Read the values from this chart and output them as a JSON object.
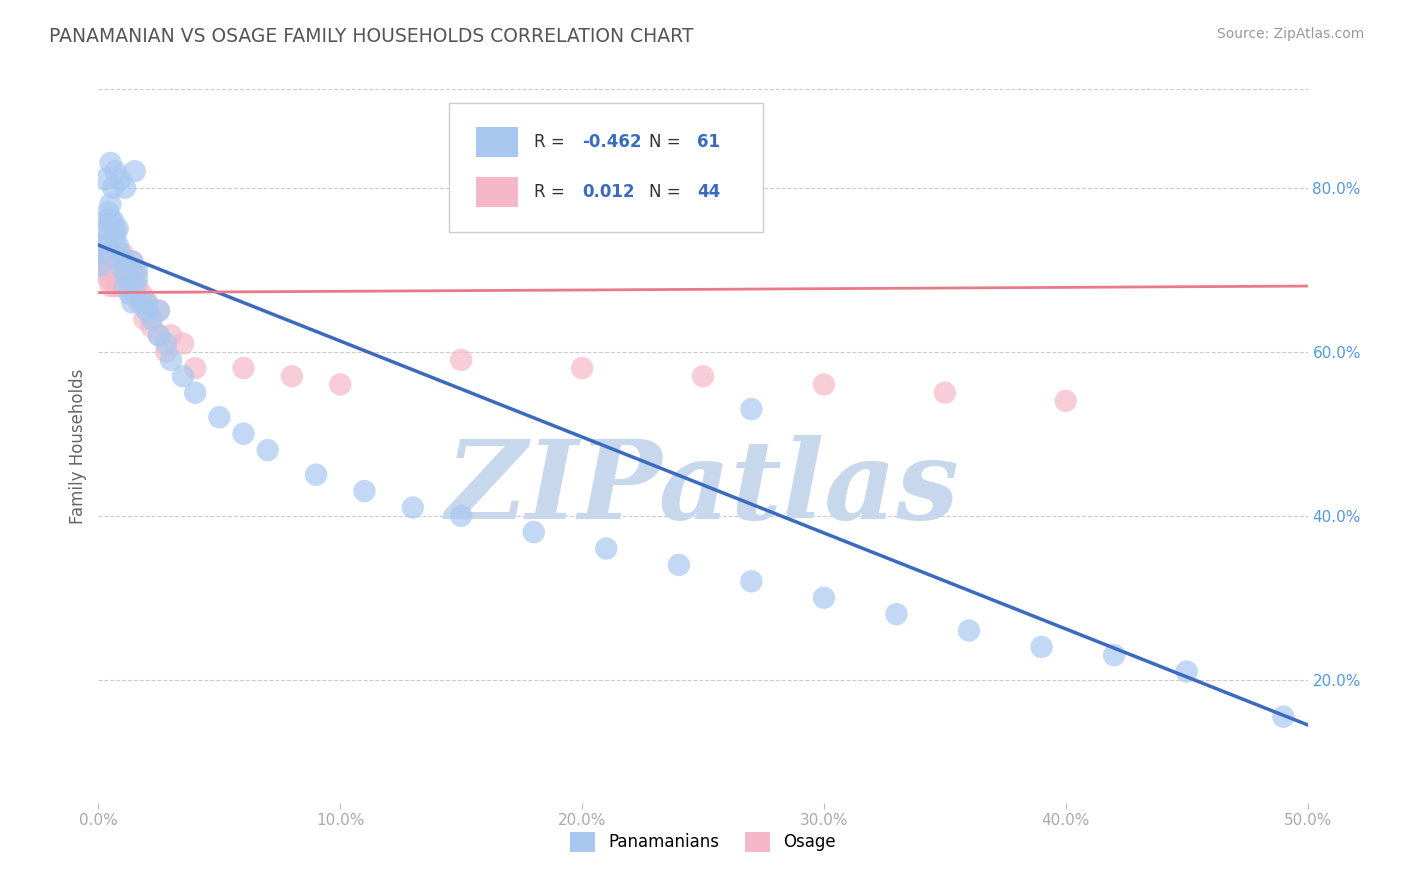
{
  "title": "PANAMANIAN VS OSAGE FAMILY HOUSEHOLDS CORRELATION CHART",
  "source": "Source: ZipAtlas.com",
  "ylabel": "Family Households",
  "xlim": [
    0.0,
    0.5
  ],
  "ylim": [
    0.05,
    0.92
  ],
  "xtick_labels": [
    "0.0%",
    "10.0%",
    "20.0%",
    "30.0%",
    "40.0%",
    "50.0%"
  ],
  "xtick_values": [
    0.0,
    0.1,
    0.2,
    0.3,
    0.4,
    0.5
  ],
  "ytick_labels": [
    "20.0%",
    "40.0%",
    "60.0%",
    "80.0%"
  ],
  "ytick_values": [
    0.2,
    0.4,
    0.6,
    0.8
  ],
  "blue_R": "-0.462",
  "blue_N": "61",
  "pink_R": "0.012",
  "pink_N": "44",
  "watermark": "ZIPatlas",
  "blue_scatter_x": [
    0.001,
    0.002,
    0.002,
    0.003,
    0.003,
    0.004,
    0.004,
    0.005,
    0.005,
    0.006,
    0.006,
    0.007,
    0.007,
    0.008,
    0.008,
    0.009,
    0.01,
    0.01,
    0.011,
    0.012,
    0.013,
    0.014,
    0.015,
    0.016,
    0.018,
    0.02,
    0.022,
    0.025,
    0.028,
    0.03,
    0.035,
    0.04,
    0.05,
    0.06,
    0.07,
    0.09,
    0.11,
    0.13,
    0.15,
    0.18,
    0.21,
    0.24,
    0.27,
    0.3,
    0.33,
    0.36,
    0.39,
    0.42,
    0.45,
    0.49,
    0.014,
    0.016,
    0.02,
    0.025,
    0.003,
    0.005,
    0.007,
    0.009,
    0.011,
    0.015,
    0.27
  ],
  "blue_scatter_y": [
    0.705,
    0.72,
    0.73,
    0.75,
    0.76,
    0.74,
    0.77,
    0.76,
    0.78,
    0.8,
    0.76,
    0.75,
    0.74,
    0.73,
    0.75,
    0.72,
    0.71,
    0.7,
    0.68,
    0.69,
    0.67,
    0.66,
    0.68,
    0.69,
    0.66,
    0.65,
    0.64,
    0.62,
    0.61,
    0.59,
    0.57,
    0.55,
    0.52,
    0.5,
    0.48,
    0.45,
    0.43,
    0.41,
    0.4,
    0.38,
    0.36,
    0.34,
    0.32,
    0.3,
    0.28,
    0.26,
    0.24,
    0.23,
    0.21,
    0.155,
    0.71,
    0.7,
    0.66,
    0.65,
    0.81,
    0.83,
    0.82,
    0.81,
    0.8,
    0.82,
    0.53
  ],
  "pink_scatter_x": [
    0.001,
    0.002,
    0.003,
    0.004,
    0.005,
    0.005,
    0.006,
    0.007,
    0.007,
    0.008,
    0.008,
    0.009,
    0.01,
    0.01,
    0.011,
    0.012,
    0.013,
    0.014,
    0.015,
    0.016,
    0.017,
    0.018,
    0.019,
    0.02,
    0.022,
    0.025,
    0.028,
    0.03,
    0.035,
    0.04,
    0.06,
    0.08,
    0.1,
    0.15,
    0.2,
    0.25,
    0.3,
    0.35,
    0.4,
    0.01,
    0.012,
    0.015,
    0.02,
    0.025
  ],
  "pink_scatter_y": [
    0.7,
    0.72,
    0.71,
    0.69,
    0.7,
    0.68,
    0.72,
    0.7,
    0.68,
    0.71,
    0.69,
    0.68,
    0.7,
    0.72,
    0.71,
    0.7,
    0.69,
    0.71,
    0.7,
    0.68,
    0.66,
    0.67,
    0.64,
    0.65,
    0.63,
    0.62,
    0.6,
    0.62,
    0.61,
    0.58,
    0.58,
    0.57,
    0.56,
    0.59,
    0.58,
    0.57,
    0.56,
    0.55,
    0.54,
    0.69,
    0.68,
    0.67,
    0.66,
    0.65
  ],
  "blue_line_x": [
    0.0,
    0.5
  ],
  "blue_line_y": [
    0.73,
    0.145
  ],
  "pink_line_x": [
    0.0,
    0.5
  ],
  "pink_line_y": [
    0.672,
    0.68
  ],
  "blue_color": "#a8c8f0",
  "pink_color": "#f5b8c8",
  "blue_line_color": "#3a6bbf",
  "pink_line_color": "#e87a8a",
  "bg_color": "#ffffff",
  "grid_color": "#cccccc",
  "title_color": "#555555",
  "axis_label_color": "#666666",
  "tick_color": "#aaaaaa",
  "watermark_color": "#c8d8ec",
  "legend_label_color": "#333333",
  "legend_value_color": "#3a6bbf"
}
